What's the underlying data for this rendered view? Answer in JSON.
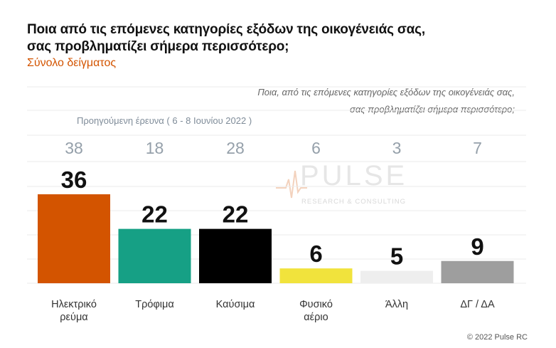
{
  "title_line1": "Ποια από τις επόμενες κατηγορίες εξόδων της οικογένειάς σας,",
  "title_line2": "σας προβληματίζει σήμερα περισσότερο;",
  "subtitle": "Σύνολο δείγματος",
  "question_line1": "Ποια, από τις επόμενες κατηγορίες εξόδων της οικογένειάς σας,",
  "question_line2": "σας προβληματίζει σήμερα περισσότερο;",
  "previous_survey_label": "Προηγούμενη έρευνα  ( 6 - 8 Ιουνίου  2022 )",
  "watermark": {
    "name": "PULSE",
    "tagline": "RESEARCH & CONSULTING"
  },
  "copyright": "© 2022 Pulse RC",
  "chart_data": {
    "type": "bar",
    "categories": [
      [
        "Ηλεκτρικό",
        "ρεύμα"
      ],
      [
        "Τρόφιμα"
      ],
      [
        "Καύσιμα"
      ],
      [
        "Φυσικό",
        "αέριο"
      ],
      [
        "Άλλη"
      ],
      [
        "ΔΓ / ΔΑ"
      ]
    ],
    "values": [
      36,
      22,
      22,
      6,
      5,
      9
    ],
    "previous_values": [
      38,
      18,
      28,
      6,
      3,
      7
    ],
    "colors": [
      "#d35400",
      "#16a085",
      "#000000",
      "#f1e33c",
      "#eeeeee",
      "#9e9e9e"
    ],
    "ylim": [
      0,
      40
    ],
    "grid": true
  }
}
